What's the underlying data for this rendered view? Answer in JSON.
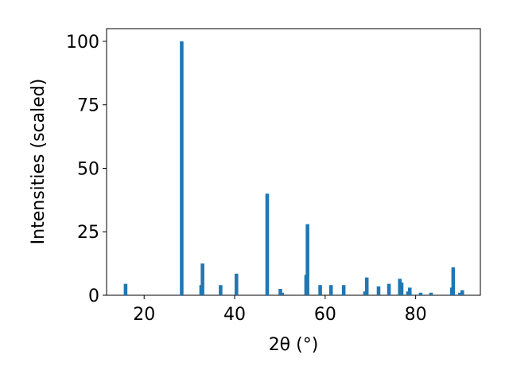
{
  "chart_data": {
    "type": "bar",
    "x_label": "2θ (°)",
    "y_label": "Intensities (scaled)",
    "x": [
      15.9,
      28.3,
      32.6,
      32.9,
      36.9,
      40.4,
      47.2,
      50.1,
      50.5,
      55.8,
      56.1,
      58.9,
      61.3,
      64.1,
      68.8,
      69.2,
      71.8,
      74.1,
      76.5,
      76.9,
      78.3,
      78.7,
      81.1,
      83.4,
      88.0,
      88.3,
      89.8,
      90.3
    ],
    "values": [
      4.5,
      100,
      4,
      12.5,
      4,
      8.5,
      40,
      2.5,
      1,
      8,
      28,
      4,
      4,
      4,
      1.5,
      7,
      3.5,
      4.5,
      6.5,
      5,
      1.5,
      3,
      1,
      1,
      3,
      11,
      1,
      2
    ],
    "color": "#1f77b4",
    "xlim": [
      11.7,
      94.3
    ],
    "xticks": [
      20,
      40,
      60,
      80
    ],
    "ylim": [
      0,
      105
    ],
    "yticks": [
      0,
      25,
      50,
      75,
      100
    ]
  }
}
